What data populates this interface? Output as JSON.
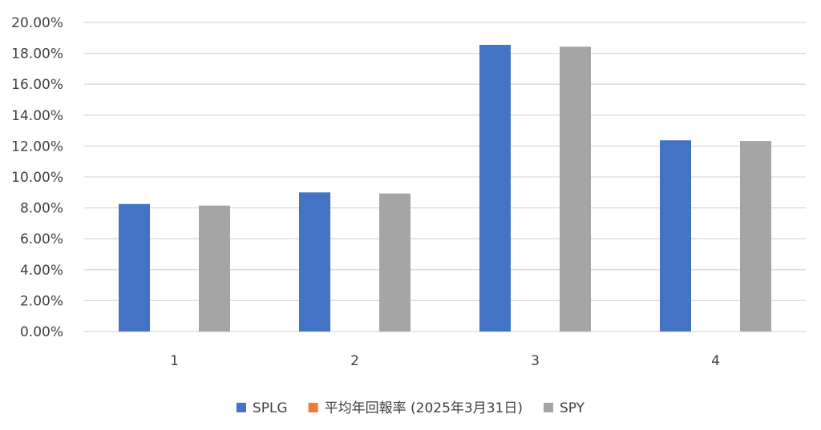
{
  "chart_data": {
    "type": "bar",
    "categories": [
      "1",
      "2",
      "3",
      "4"
    ],
    "series": [
      {
        "name": "SPLG",
        "color": "#4472C4",
        "values": [
          0.0825,
          0.09,
          0.1855,
          0.1237
        ]
      },
      {
        "name": "平均年回報率 (2025年3月31日)",
        "color": "#ED7D31",
        "values": [
          null,
          null,
          null,
          null
        ]
      },
      {
        "name": "SPY",
        "color": "#A5A5A5",
        "values": [
          0.0815,
          0.0893,
          0.1843,
          0.1233
        ]
      }
    ],
    "y_ticks": [
      "0.00%",
      "2.00%",
      "4.00%",
      "6.00%",
      "8.00%",
      "10.00%",
      "12.00%",
      "14.00%",
      "16.00%",
      "18.00%",
      "20.00%"
    ],
    "ylim": [
      0,
      0.2
    ],
    "grid": true,
    "legend_position": "bottom",
    "title": "",
    "xlabel": "",
    "ylabel": ""
  }
}
